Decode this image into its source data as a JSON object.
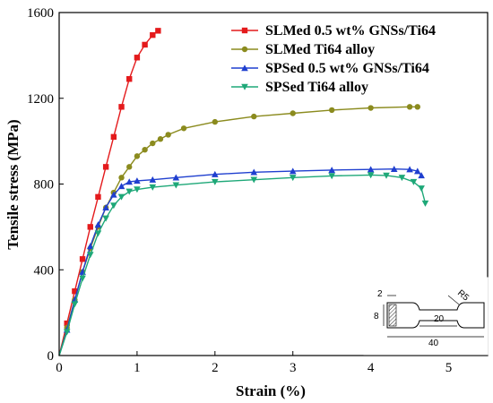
{
  "chart_data": {
    "type": "line",
    "xlabel": "Strain (%)",
    "ylabel": "Tensile stress (MPa)",
    "xlim": [
      0,
      5.5
    ],
    "ylim": [
      0,
      1600
    ],
    "xticks": [
      0,
      1,
      2,
      3,
      4,
      5
    ],
    "yticks": [
      0,
      400,
      800,
      1200,
      1600
    ],
    "legend_position": "top-right",
    "series": [
      {
        "name": "SLMed 0.5 wt% GNSs/Ti64",
        "color": "#e41a1c",
        "marker": "square",
        "x": [
          0,
          0.1,
          0.2,
          0.3,
          0.4,
          0.5,
          0.6,
          0.7,
          0.8,
          0.9,
          1.0,
          1.1,
          1.2,
          1.27
        ],
        "y": [
          0,
          150,
          300,
          450,
          600,
          740,
          880,
          1020,
          1160,
          1290,
          1390,
          1450,
          1495,
          1515
        ]
      },
      {
        "name": "SLMed Ti64 alloy",
        "color": "#8b8b1e",
        "marker": "circle",
        "x": [
          0,
          0.1,
          0.2,
          0.3,
          0.4,
          0.5,
          0.6,
          0.7,
          0.8,
          0.9,
          1.0,
          1.1,
          1.2,
          1.3,
          1.4,
          1.6,
          2.0,
          2.5,
          3.0,
          3.5,
          4.0,
          4.5,
          4.6
        ],
        "y": [
          0,
          130,
          260,
          390,
          500,
          600,
          690,
          760,
          830,
          880,
          930,
          960,
          990,
          1010,
          1030,
          1060,
          1090,
          1115,
          1130,
          1145,
          1155,
          1160,
          1160
        ]
      },
      {
        "name": "SPSed 0.5 wt% GNSs/Ti64",
        "color": "#1f3fcf",
        "marker": "triangle-up",
        "x": [
          0,
          0.1,
          0.2,
          0.3,
          0.4,
          0.5,
          0.6,
          0.7,
          0.8,
          0.9,
          1.0,
          1.2,
          1.5,
          2.0,
          2.5,
          3.0,
          3.5,
          4.0,
          4.3,
          4.5,
          4.6,
          4.65
        ],
        "y": [
          0,
          120,
          260,
          390,
          510,
          610,
          690,
          750,
          790,
          810,
          815,
          820,
          830,
          845,
          855,
          860,
          865,
          868,
          870,
          868,
          860,
          840
        ]
      },
      {
        "name": "SPSed Ti64 alloy",
        "color": "#1ea878",
        "marker": "triangle-down",
        "x": [
          0,
          0.1,
          0.2,
          0.3,
          0.4,
          0.5,
          0.6,
          0.7,
          0.8,
          0.9,
          1.0,
          1.2,
          1.5,
          2.0,
          2.5,
          3.0,
          3.5,
          4.0,
          4.2,
          4.4,
          4.55,
          4.65,
          4.7
        ],
        "y": [
          0,
          110,
          240,
          360,
          470,
          570,
          640,
          700,
          740,
          765,
          775,
          785,
          795,
          810,
          820,
          830,
          838,
          842,
          840,
          830,
          810,
          780,
          710
        ]
      }
    ],
    "inset": {
      "labels": [
        "2",
        "8",
        "R5",
        "20",
        "40"
      ]
    }
  }
}
